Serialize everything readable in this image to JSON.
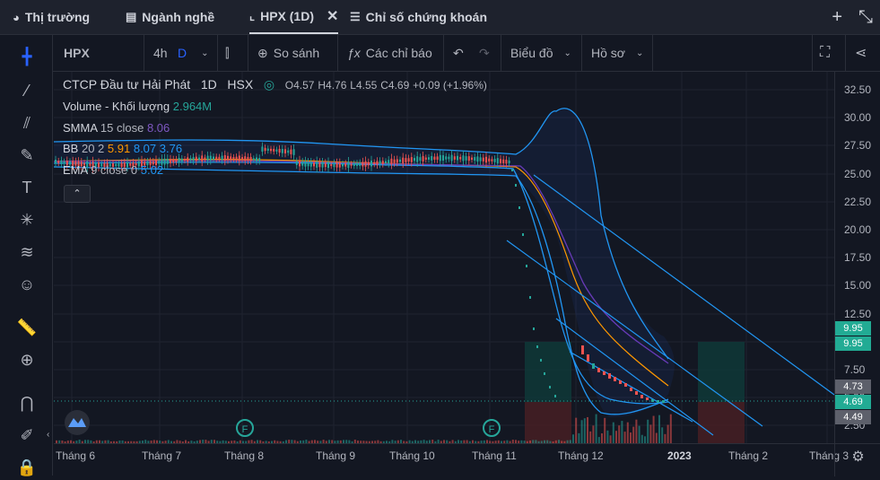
{
  "tabs": [
    {
      "label": "Thị trường",
      "icon": "pie-chart-icon"
    },
    {
      "label": "Ngành nghề",
      "icon": "list-icon"
    },
    {
      "label": "HPX (1D)",
      "icon": "chart-icon",
      "active": true
    },
    {
      "label": "Chỉ số chứng khoán",
      "icon": "menu-icon"
    }
  ],
  "toolbar": {
    "symbol": "HPX",
    "interval_a": "4h",
    "interval_b": "D",
    "compare": "So sánh",
    "indicators": "Các chỉ báo",
    "chart_type": "Biểu đồ",
    "profile": "Hồ sơ"
  },
  "legend": {
    "name": "CTCP Đầu tư Hải Phát",
    "tf": "1D",
    "exchange": "HSX",
    "o_label": "O",
    "o": "4.57",
    "h_label": "H",
    "h": "4.76",
    "l_label": "L",
    "l": "4.55",
    "c_label": "C",
    "c": "4.69",
    "chg": "+0.09 (+1.96%)",
    "volume_label": "Volume - Khối lượng",
    "volume": "2.964M",
    "smma_label": "SMMA",
    "smma_params": "15 close",
    "smma": "8.06",
    "bb_label": "BB",
    "bb_params": "20 2",
    "bb_mid": "5.91",
    "bb_up": "8.07",
    "bb_low": "3.76",
    "ema_label": "EMA",
    "ema_params": "9 close 0",
    "ema": "5.02"
  },
  "price_axis": [
    "32.50",
    "30.00",
    "27.50",
    "25.00",
    "22.50",
    "20.00",
    "17.50",
    "15.00",
    "12.50",
    "10.00",
    "7.50",
    "5.00",
    "2.50"
  ],
  "price_labels": [
    {
      "text": "9.95",
      "color": "#22ab94"
    },
    {
      "text": "9.95",
      "color": "#22ab94"
    },
    {
      "text": "4.73",
      "color": "#5d606b"
    },
    {
      "text": "4.69",
      "color": "#22ab94"
    },
    {
      "text": "4.49",
      "color": "#5d606b"
    }
  ],
  "time_axis": [
    "Tháng 6",
    "Tháng 7",
    "Tháng 8",
    "Tháng 9",
    "Tháng 10",
    "Tháng 11",
    "Tháng 12",
    "2023",
    "Tháng 2",
    "Tháng 3"
  ],
  "markers": [
    "F",
    "F"
  ],
  "colors": {
    "up": "#26a69a",
    "down": "#ef5350",
    "bb": "#2196f3",
    "smma": "#673ab7",
    "ema_orange": "#ff9800"
  }
}
